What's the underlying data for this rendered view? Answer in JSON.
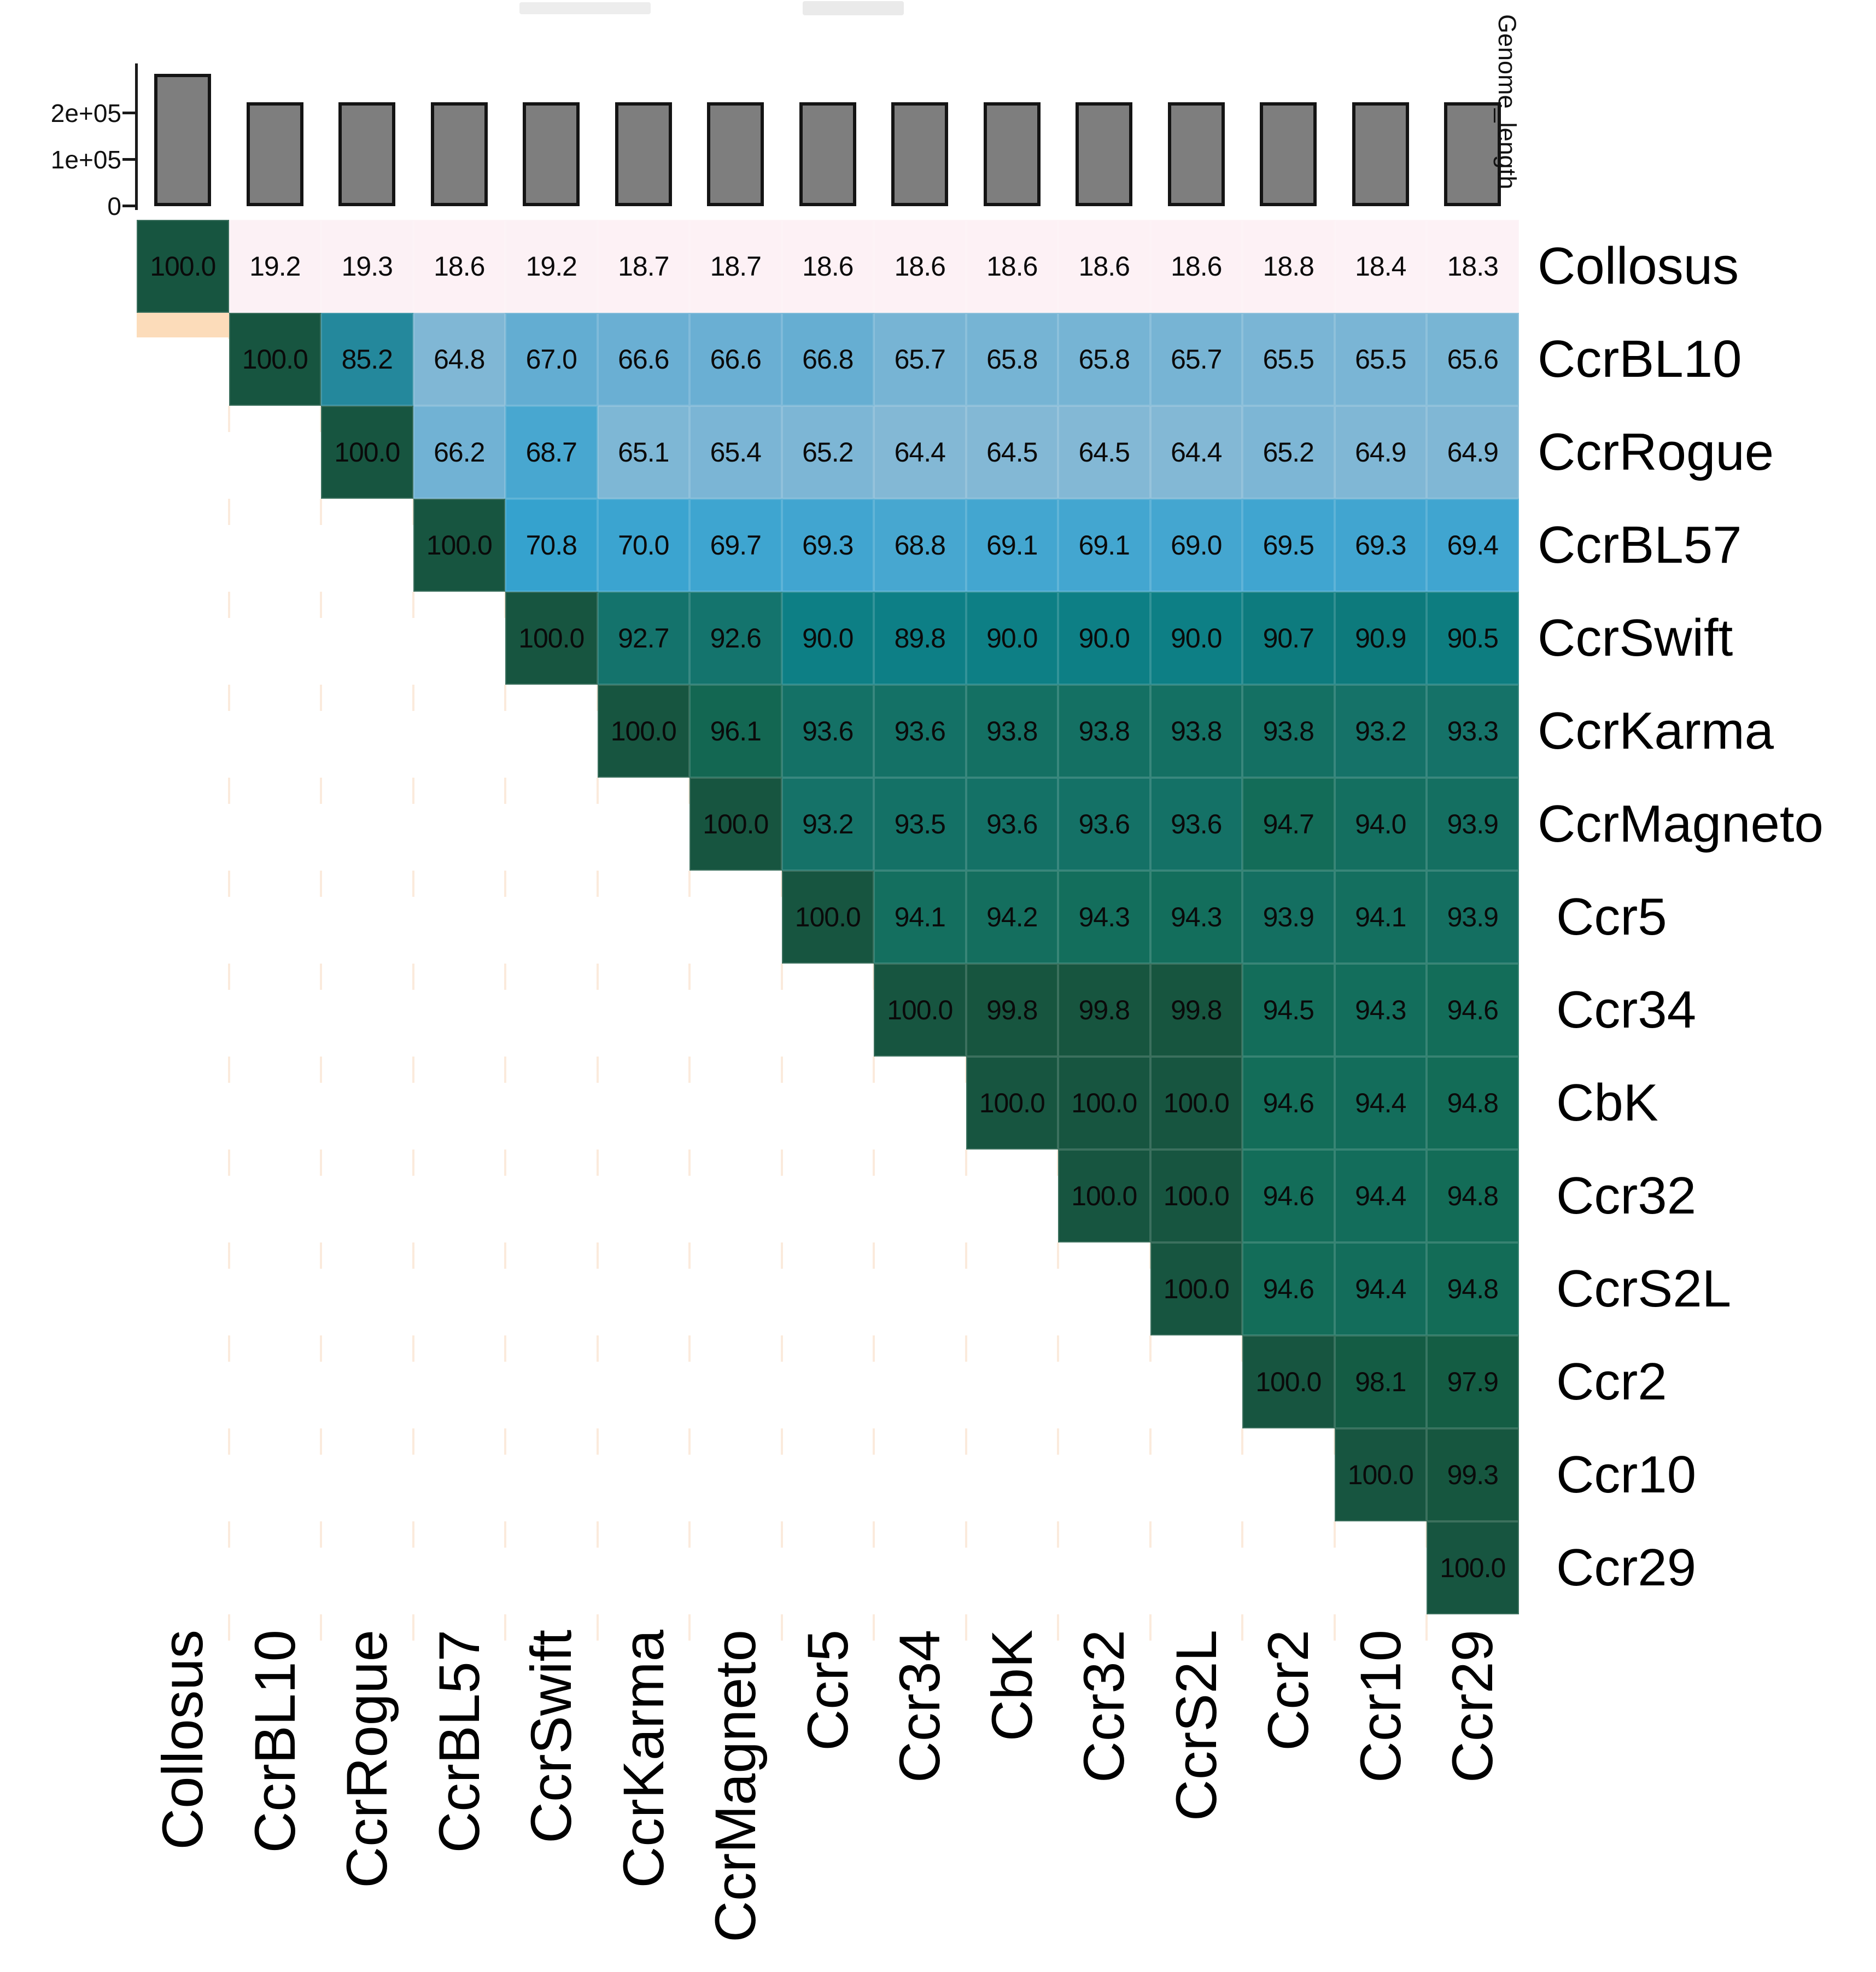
{
  "genome_bar_chart": {
    "axis_title": "Genome_length",
    "y_ticks": [
      {
        "label": "2e+05",
        "value": 200000
      },
      {
        "label": "1e+05",
        "value": 100000
      },
      {
        "label": "0",
        "value": 0
      }
    ],
    "bar_fill": "#7e7e7e",
    "bar_stroke": "#141414"
  },
  "phages": [
    "Collosus",
    "CcrBL10",
    "CcrRogue",
    "CcrBL57",
    "CcrSwift",
    "CcrKarma",
    "CcrMagneto",
    "Ccr5",
    "Ccr34",
    "CbK",
    "Ccr32",
    "CcrS2L",
    "Ccr2",
    "Ccr10",
    "Ccr29"
  ],
  "chart_data": [
    {
      "type": "bar",
      "title": "Genome_length",
      "categories": [
        "Collosus",
        "CcrBL10",
        "CcrRogue",
        "CcrBL57",
        "CcrSwift",
        "CcrKarma",
        "CcrMagneto",
        "Ccr5",
        "Ccr34",
        "CbK",
        "Ccr32",
        "CcrS2L",
        "Ccr2",
        "Ccr10",
        "Ccr29"
      ],
      "values": [
        285000,
        223000,
        223000,
        223000,
        223000,
        223000,
        223000,
        223000,
        223000,
        223000,
        223000,
        223000,
        223000,
        223000,
        223000
      ],
      "ylabel": "Genome_length",
      "ylim": [
        0,
        290000
      ],
      "yticks": [
        "0",
        "1e+05",
        "2e+05"
      ],
      "bar_color": "#7e7e7e"
    },
    {
      "type": "heatmap",
      "subtype": "upper-triangle percent-identity matrix",
      "rows": [
        "Collosus",
        "CcrBL10",
        "CcrRogue",
        "CcrBL57",
        "CcrSwift",
        "CcrKarma",
        "CcrMagneto",
        "Ccr5",
        "Ccr34",
        "CbK",
        "Ccr32",
        "CcrS2L",
        "Ccr2",
        "Ccr10",
        "Ccr29"
      ],
      "cols": [
        "Collosus",
        "CcrBL10",
        "CcrRogue",
        "CcrBL57",
        "CcrSwift",
        "CcrKarma",
        "CcrMagneto",
        "Ccr5",
        "Ccr34",
        "CbK",
        "Ccr32",
        "CcrS2L",
        "Ccr2",
        "Ccr10",
        "Ccr29"
      ],
      "values_upper_triangle": [
        [
          100.0,
          19.2,
          19.3,
          18.6,
          19.2,
          18.7,
          18.7,
          18.6,
          18.6,
          18.6,
          18.6,
          18.6,
          18.8,
          18.4,
          18.3
        ],
        [
          100.0,
          85.2,
          64.8,
          67.0,
          66.6,
          66.6,
          66.8,
          65.7,
          65.8,
          65.8,
          65.7,
          65.5,
          65.5,
          65.6
        ],
        [
          100.0,
          66.2,
          68.7,
          65.1,
          65.4,
          65.2,
          64.4,
          64.5,
          64.5,
          64.4,
          65.2,
          64.9,
          64.9
        ],
        [
          100.0,
          70.8,
          70.0,
          69.7,
          69.3,
          68.8,
          69.1,
          69.1,
          69.0,
          69.5,
          69.3,
          69.4
        ],
        [
          100.0,
          92.7,
          92.6,
          90.0,
          89.8,
          90.0,
          90.0,
          90.0,
          90.7,
          90.9,
          90.5
        ],
        [
          100.0,
          96.1,
          93.6,
          93.6,
          93.8,
          93.8,
          93.8,
          93.8,
          93.2,
          93.3
        ],
        [
          100.0,
          93.2,
          93.5,
          93.6,
          93.6,
          93.6,
          94.7,
          94.0,
          93.9
        ],
        [
          100.0,
          94.1,
          94.2,
          94.3,
          94.3,
          93.9,
          94.1,
          93.9
        ],
        [
          100.0,
          99.8,
          99.8,
          99.8,
          94.5,
          94.3,
          94.6
        ],
        [
          100.0,
          100.0,
          100.0,
          94.6,
          94.4,
          94.8
        ],
        [
          100.0,
          100.0,
          94.6,
          94.4,
          94.8
        ],
        [
          100.0,
          94.6,
          94.4,
          94.8
        ],
        [
          100.0,
          98.1,
          97.9
        ],
        [
          100.0,
          99.3
        ],
        [
          100.0
        ]
      ],
      "value_format": "0.0",
      "color_scale_anchors": [
        [
          18,
          253,
          242,
          246
        ],
        [
          20,
          252,
          240,
          244
        ],
        [
          64,
          134,
          185,
          213
        ],
        [
          65,
          127,
          183,
          213
        ],
        [
          66,
          116,
          179,
          212
        ],
        [
          67,
          99,
          173,
          210
        ],
        [
          68,
          82,
          169,
          208
        ],
        [
          69,
          68,
          166,
          208
        ],
        [
          70,
          59,
          164,
          208
        ],
        [
          71,
          51,
          161,
          206
        ],
        [
          80,
          40,
          148,
          180
        ],
        [
          85,
          37,
          137,
          157
        ],
        [
          86,
          30,
          134,
          150
        ],
        [
          88,
          17,
          131,
          140
        ],
        [
          90,
          13,
          127,
          133
        ],
        [
          91,
          13,
          122,
          123
        ],
        [
          92,
          18,
          119,
          115
        ],
        [
          93,
          21,
          114,
          105
        ],
        [
          93.6,
          20,
          113,
          102
        ],
        [
          94,
          20,
          111,
          96
        ],
        [
          94.5,
          19,
          109,
          90
        ],
        [
          95,
          19,
          107,
          85
        ],
        [
          96,
          19,
          104,
          83
        ],
        [
          97,
          20,
          98,
          73
        ],
        [
          98,
          20,
          92,
          68
        ],
        [
          99,
          21,
          88,
          65
        ],
        [
          99.5,
          22,
          85,
          62
        ],
        [
          100,
          23,
          85,
          64
        ]
      ],
      "legend_position": "none",
      "grid": false
    }
  ],
  "artifact_colors": {
    "peach_cell": "#fcdcba",
    "dashed_guides": "#fae7d6",
    "top_smudge": "#ececec"
  },
  "cell_text_color": "#0a0a0a"
}
